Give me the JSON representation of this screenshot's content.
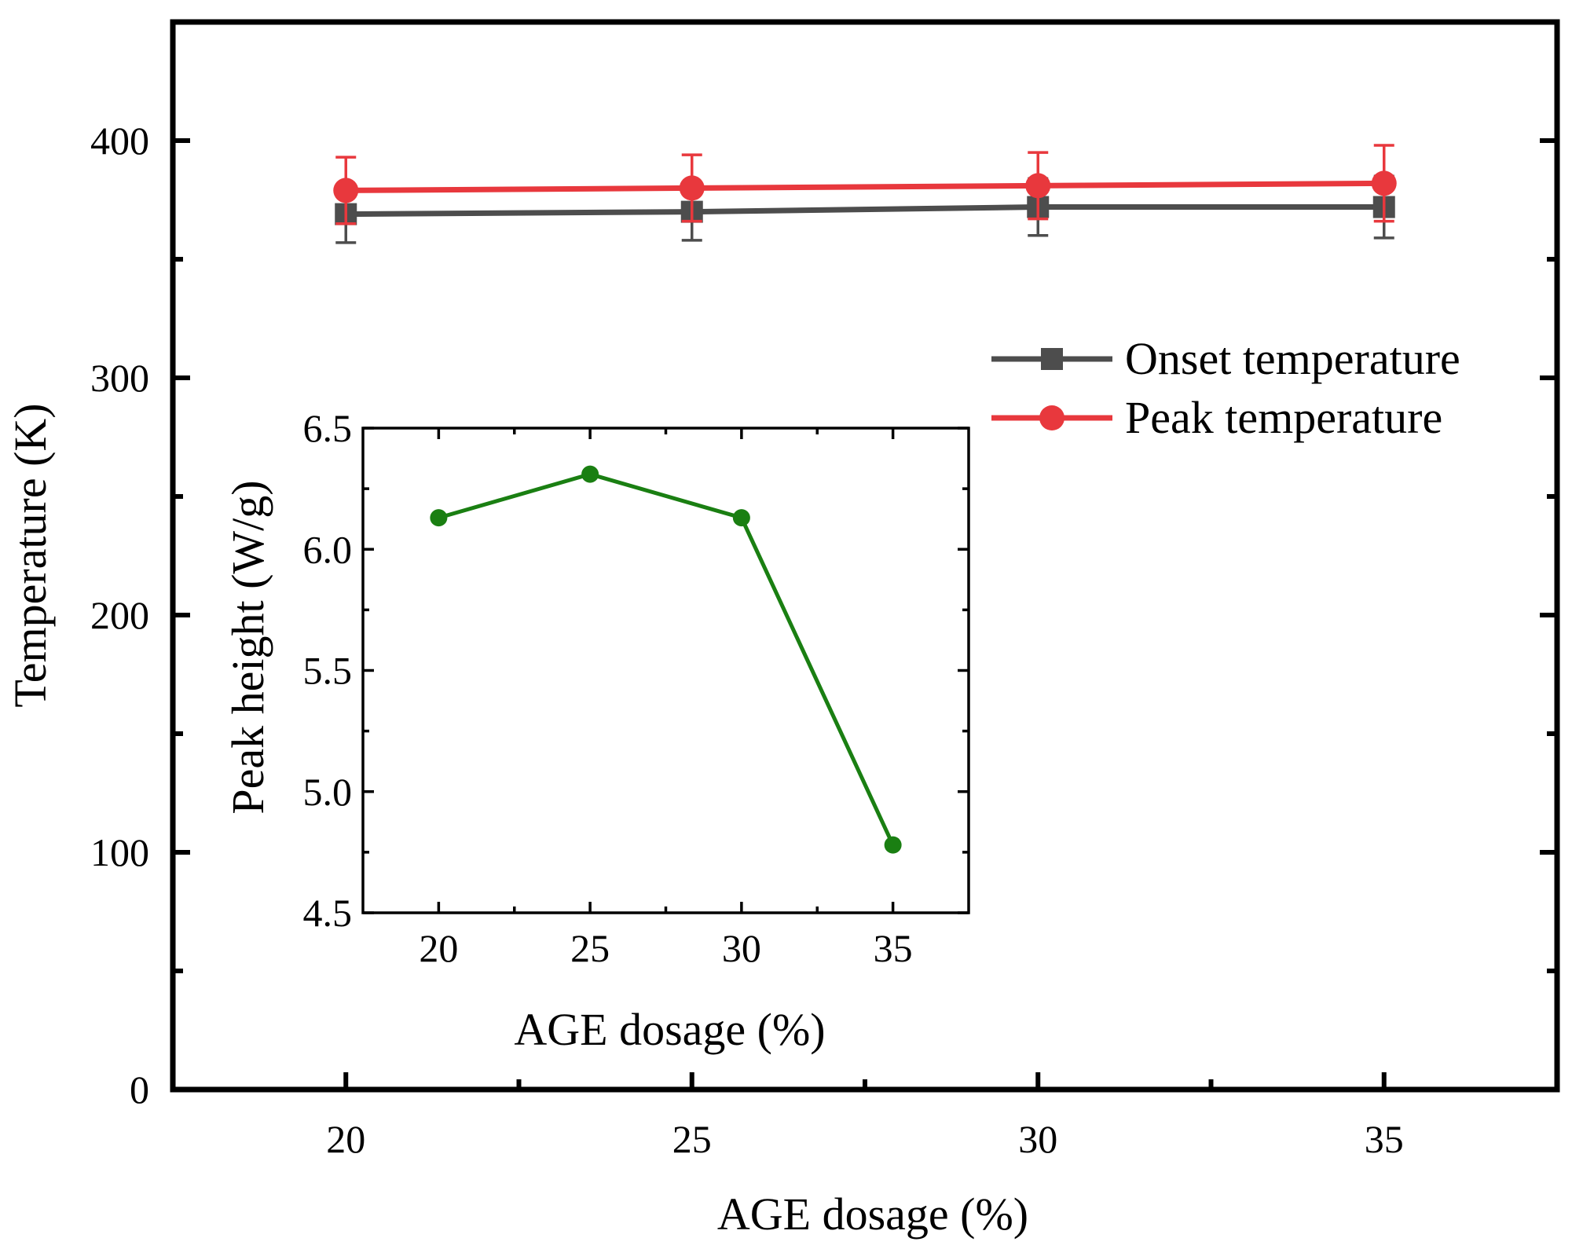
{
  "chart_data": [
    {
      "type": "line",
      "xlabel": "AGE dosage (%)",
      "ylabel": "Temperature (K)",
      "xlim": [
        17.5,
        37.5
      ],
      "ylim": [
        0,
        450
      ],
      "xticks": [
        20,
        25,
        30,
        35
      ],
      "yticks": [
        0,
        100,
        200,
        300,
        400
      ],
      "x_tick_labels": [
        "20",
        "25",
        "30",
        "35"
      ],
      "y_tick_labels": [
        "0",
        "100",
        "200",
        "300",
        "400"
      ],
      "legend_position": "right",
      "series": [
        {
          "name": "Onset temperature",
          "color": "#4d4d4d",
          "marker": "square",
          "x": [
            20,
            25,
            30,
            35
          ],
          "y": [
            369,
            370,
            372,
            372
          ],
          "error": [
            12,
            12,
            12,
            13
          ]
        },
        {
          "name": "Peak temperature",
          "color": "#e8383d",
          "marker": "circle",
          "x": [
            20,
            25,
            30,
            35
          ],
          "y": [
            379,
            380,
            381,
            382
          ],
          "error": [
            14,
            14,
            14,
            16
          ]
        }
      ]
    },
    {
      "type": "line",
      "inset": true,
      "xlabel": "AGE dosage (%)",
      "ylabel": "Peak height (W/g)",
      "xlim": [
        17.5,
        37.5
      ],
      "ylim": [
        4.5,
        6.5
      ],
      "xticks": [
        20,
        25,
        30,
        35
      ],
      "yticks": [
        4.5,
        5.0,
        5.5,
        6.0,
        6.5
      ],
      "x_tick_labels": [
        "20",
        "25",
        "30",
        "35"
      ],
      "y_tick_labels": [
        "4.5",
        "5.0",
        "5.5",
        "6.0",
        "6.5"
      ],
      "series": [
        {
          "name": "Peak height",
          "color": "#1a7f12",
          "marker": "circle",
          "x": [
            20,
            25,
            30,
            35
          ],
          "y": [
            6.13,
            6.31,
            6.13,
            4.78
          ]
        }
      ]
    }
  ]
}
